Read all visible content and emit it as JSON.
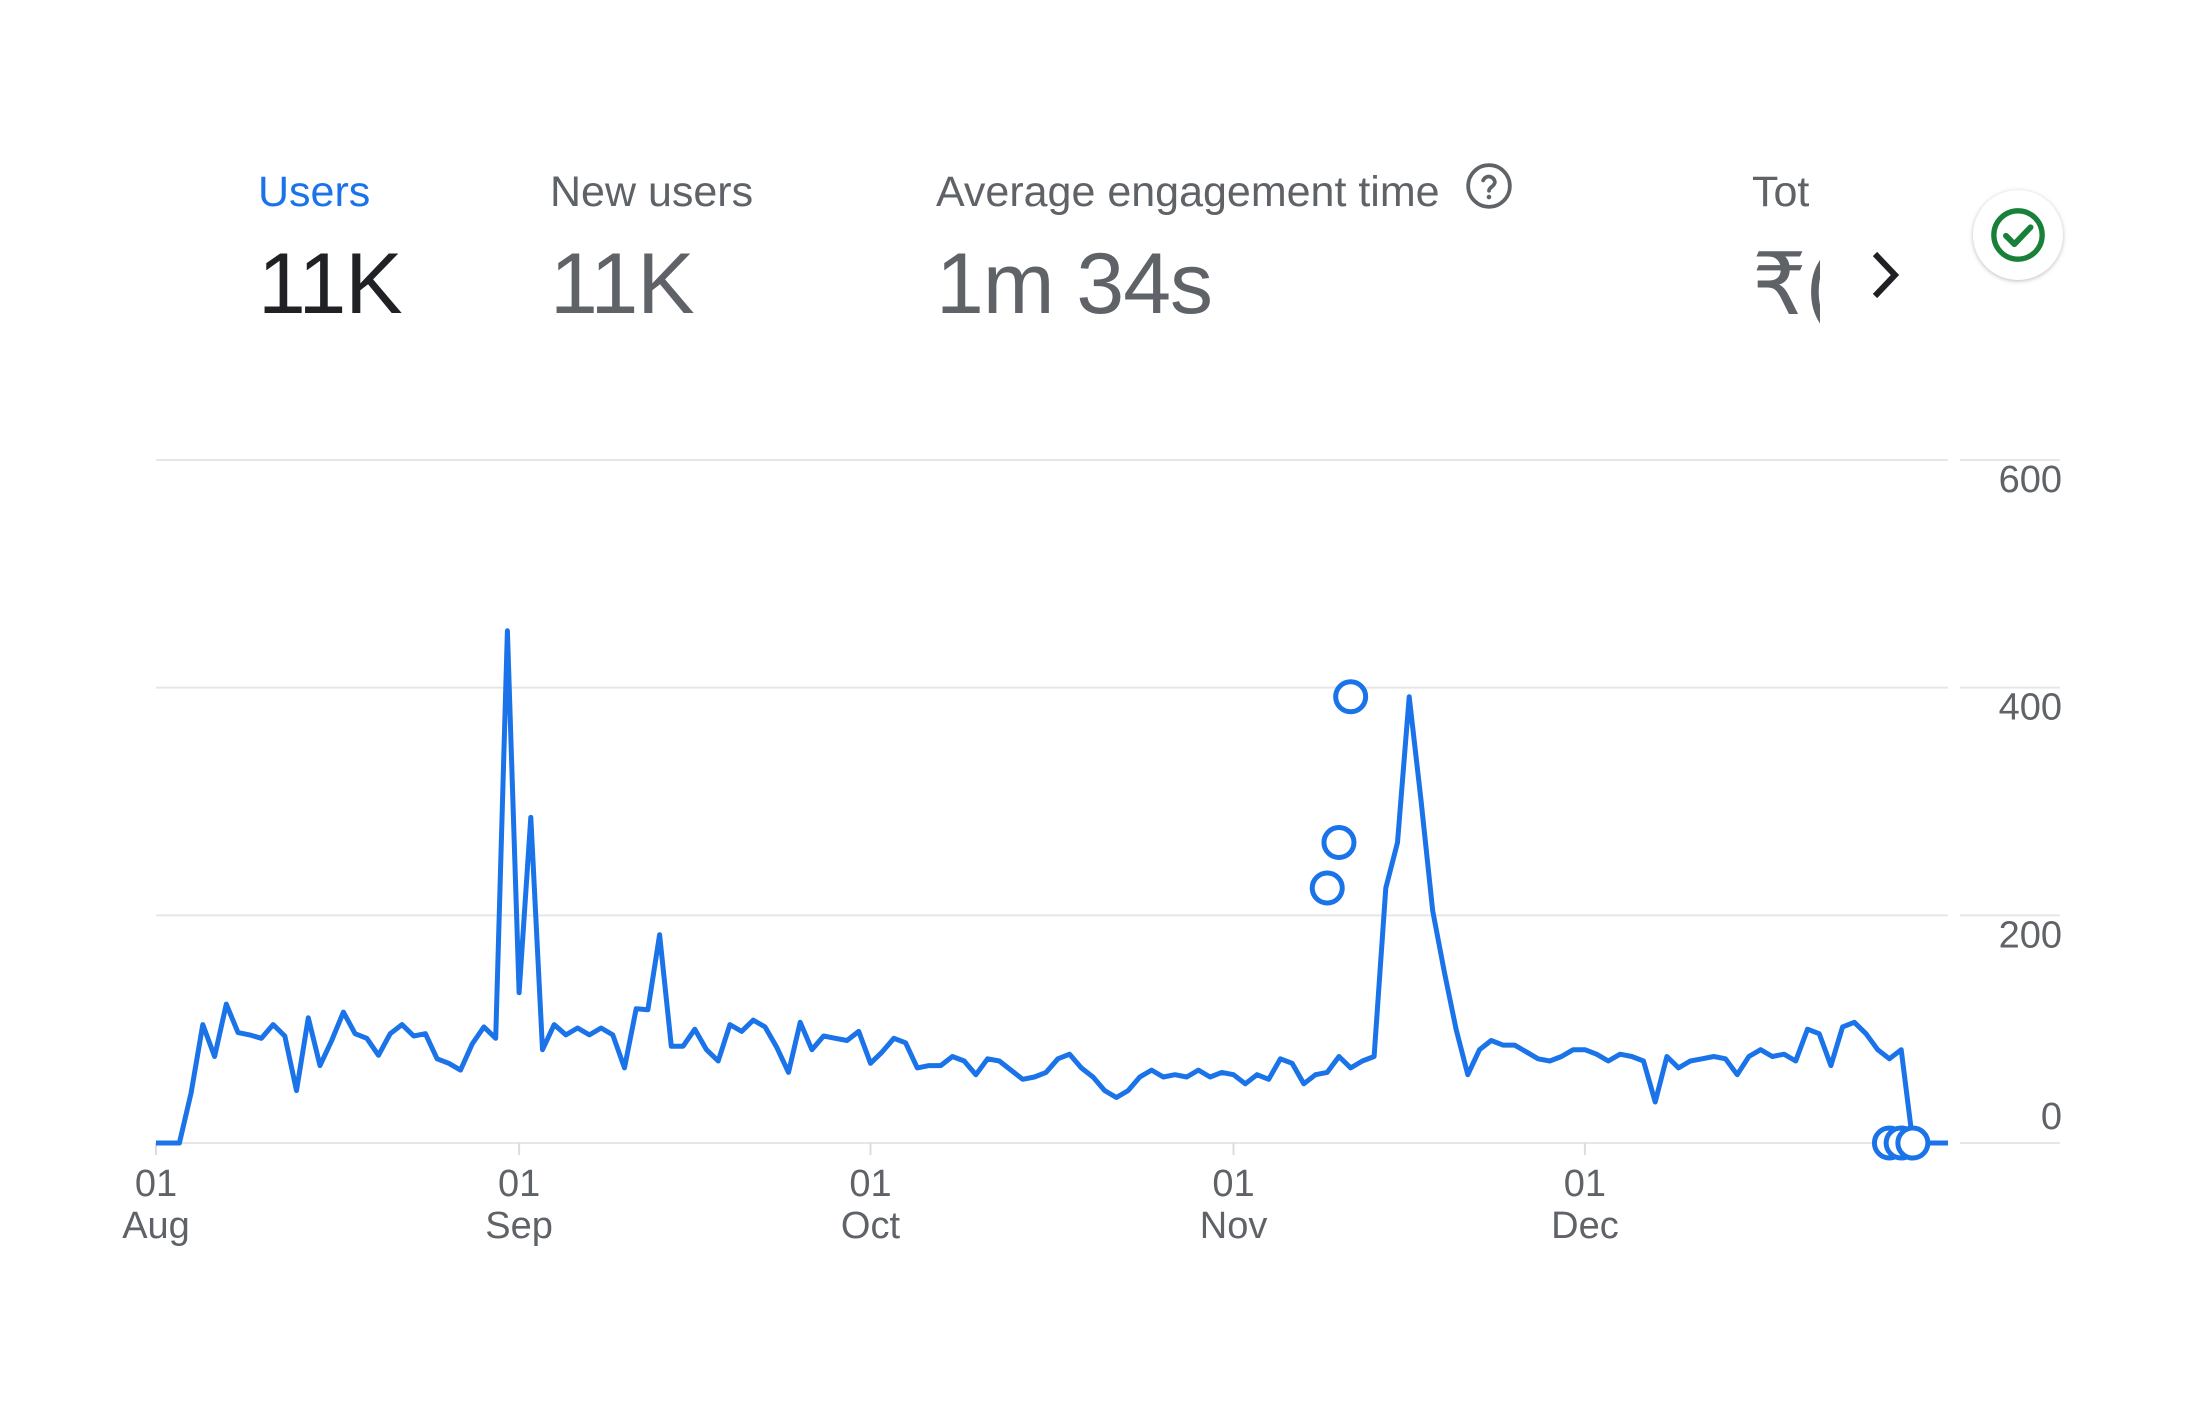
{
  "metrics": {
    "users": {
      "label": "Users",
      "value": "11K"
    },
    "new_users": {
      "label": "New users",
      "value": "11K"
    },
    "engagement": {
      "label": "Average engagement time",
      "value": "1m 34s"
    },
    "total": {
      "label": "Tot",
      "value": "₹("
    }
  },
  "icons": {
    "help": "help-circle-icon",
    "next": "chevron-right-icon",
    "status": "check-circle-icon"
  },
  "colors": {
    "accent": "#1a73e8",
    "line": "#1a73e8",
    "status_green": "#188038",
    "grid": "#e6e6e6"
  },
  "chart_data": {
    "type": "line",
    "x_start": "Aug 01",
    "x_end": "Dec 28",
    "x_ticks": [
      {
        "day": "01",
        "month": "Aug"
      },
      {
        "day": "01",
        "month": "Sep"
      },
      {
        "day": "01",
        "month": "Oct"
      },
      {
        "day": "01",
        "month": "Nov"
      },
      {
        "day": "01",
        "month": "Dec"
      }
    ],
    "y_ticks": [
      "600",
      "400",
      "200",
      "0"
    ],
    "ylim": [
      0,
      600
    ],
    "grid": true,
    "series": [
      {
        "name": "Users",
        "values": [
          0,
          0,
          0,
          44,
          104,
          76,
          122,
          97,
          95,
          92,
          104,
          94,
          46,
          110,
          68,
          90,
          115,
          96,
          92,
          77,
          96,
          104,
          94,
          96,
          74,
          70,
          64,
          87,
          102,
          92,
          450,
          132,
          286,
          82,
          104,
          95,
          101,
          95,
          101,
          95,
          66,
          118,
          117,
          183,
          85,
          85,
          100,
          82,
          72,
          104,
          98,
          108,
          102,
          84,
          62,
          106,
          82,
          94,
          92,
          90,
          98,
          70,
          80,
          92,
          88,
          66,
          68,
          68,
          76,
          72,
          60,
          74,
          72,
          64,
          56,
          58,
          62,
          74,
          78,
          66,
          58,
          46,
          40,
          46,
          58,
          64,
          58,
          60,
          58,
          64,
          58,
          62,
          60,
          52,
          60,
          56,
          74,
          70,
          52,
          60,
          62,
          76,
          66,
          72,
          76,
          224,
          264,
          392,
          302,
          204,
          150,
          100,
          60,
          82,
          90,
          86,
          86,
          80,
          74,
          72,
          76,
          82,
          82,
          78,
          72,
          78,
          76,
          72,
          36,
          76,
          66,
          72,
          74,
          76,
          74,
          60,
          76,
          82,
          76,
          78,
          72,
          100,
          96,
          68,
          102,
          106,
          96,
          82,
          74,
          82,
          0,
          0,
          0,
          0
        ]
      }
    ],
    "highlighted_points": [
      {
        "x": "Nov 09",
        "y": 224
      },
      {
        "x": "Nov 10",
        "y": 264
      },
      {
        "x": "Nov 11",
        "y": 392
      },
      {
        "x": "Dec 27",
        "y": 0
      },
      {
        "x": "Dec 28",
        "y": 0
      },
      {
        "x": "Dec 29",
        "y": 0
      }
    ]
  }
}
